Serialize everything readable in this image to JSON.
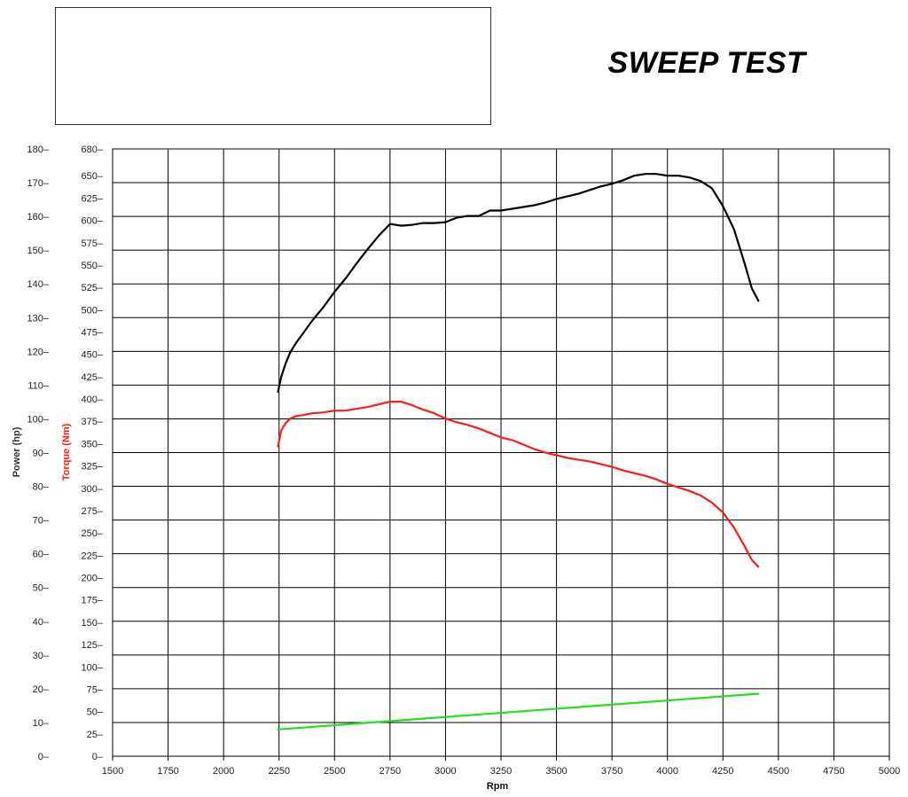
{
  "chart_data": {
    "type": "line",
    "title": "SWEEP TEST",
    "xlabel": "Rpm",
    "ylabel_power": "Power (hp)",
    "ylabel_torque": "Torque (Nm)",
    "xlim": [
      1500,
      5000
    ],
    "ylim_power": [
      0,
      180
    ],
    "ylim_torque": [
      0,
      680
    ],
    "x_ticks": [
      "1500",
      "1750",
      "2000",
      "2250",
      "2500",
      "2750",
      "3000",
      "3250",
      "3500",
      "3750",
      "4000",
      "4250",
      "4500",
      "4750",
      "5000"
    ],
    "power_ticks": [
      "0",
      "10",
      "20",
      "30",
      "40",
      "50",
      "60",
      "70",
      "80",
      "90",
      "100",
      "110",
      "120",
      "130",
      "140",
      "150",
      "160",
      "170",
      "180"
    ],
    "torque_ticks": [
      "0",
      "25",
      "50",
      "75",
      "100",
      "125",
      "150",
      "175",
      "200",
      "225",
      "250",
      "275",
      "300",
      "325",
      "350",
      "375",
      "400",
      "425",
      "450",
      "475",
      "500",
      "525",
      "550",
      "575",
      "600",
      "625",
      "650",
      "680"
    ],
    "grid": true,
    "series": [
      {
        "axis": "torque",
        "color": "#000000",
        "x": [
          2245,
          2260,
          2280,
          2300,
          2330,
          2360,
          2400,
          2450,
          2500,
          2550,
          2600,
          2650,
          2700,
          2750,
          2800,
          2850,
          2900,
          2950,
          3000,
          3050,
          3100,
          3150,
          3200,
          3250,
          3300,
          3350,
          3400,
          3450,
          3500,
          3550,
          3600,
          3650,
          3700,
          3750,
          3800,
          3850,
          3900,
          3950,
          4000,
          4050,
          4100,
          4150,
          4200,
          4250,
          4300,
          4350,
          4380,
          4410
        ],
        "y": [
          408,
          425,
          440,
          452,
          464,
          474,
          488,
          503,
          520,
          535,
          552,
          568,
          583,
          596,
          594,
          595,
          597,
          597,
          598,
          603,
          605,
          605,
          611,
          611,
          613,
          615,
          617,
          620,
          624,
          627,
          630,
          634,
          638,
          641,
          645,
          650,
          652,
          652,
          650,
          650,
          648,
          644,
          636,
          616,
          590,
          550,
          524,
          510
        ]
      },
      {
        "axis": "torque",
        "color": "#ff1a1a",
        "x": [
          2245,
          2260,
          2280,
          2300,
          2330,
          2360,
          2400,
          2450,
          2500,
          2550,
          2600,
          2650,
          2700,
          2750,
          2800,
          2850,
          2900,
          2950,
          3000,
          3050,
          3100,
          3150,
          3200,
          3250,
          3300,
          3350,
          3400,
          3450,
          3500,
          3550,
          3600,
          3650,
          3700,
          3750,
          3800,
          3850,
          3900,
          3950,
          4000,
          4050,
          4100,
          4150,
          4200,
          4250,
          4300,
          4350,
          4380,
          4410
        ],
        "y": [
          347,
          365,
          373,
          378,
          381,
          382,
          384,
          385,
          387,
          387,
          389,
          391,
          394,
          397,
          397,
          393,
          388,
          384,
          378,
          374,
          371,
          367,
          362,
          357,
          354,
          349,
          344,
          340,
          337,
          334,
          332,
          330,
          327,
          324,
          320,
          317,
          314,
          310,
          305,
          301,
          297,
          292,
          284,
          273,
          256,
          234,
          220,
          212
        ]
      },
      {
        "axis": "torque",
        "color": "#22e01f",
        "x": [
          2245,
          4410
        ],
        "y": [
          30,
          70
        ]
      }
    ]
  }
}
